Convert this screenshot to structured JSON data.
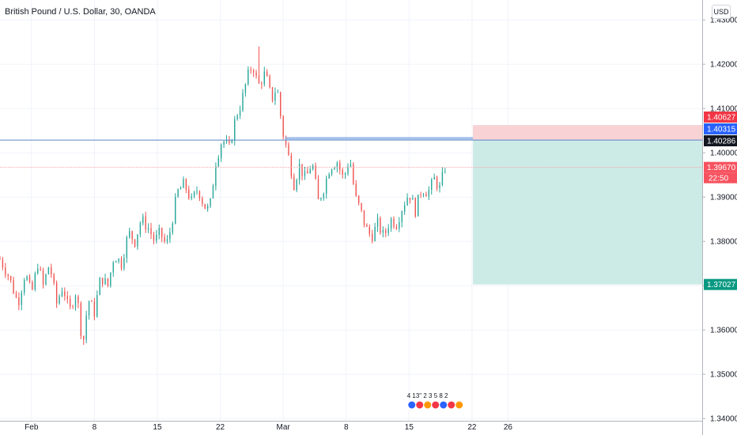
{
  "header": {
    "title": "British Pound / U.S. Dollar, 30, OANDA",
    "currency_button": "USD"
  },
  "chart_data": {
    "type": "candlestick",
    "title": "British Pound / U.S. Dollar, 30, OANDA",
    "y_ticks": [
      "1.43000",
      "1.42000",
      "1.41000",
      "1.40000",
      "1.39000",
      "1.38000",
      "1.37000",
      "1.36000",
      "1.35000",
      "1.34000"
    ],
    "ylim": [
      1.3395,
      1.4345
    ],
    "x_ticks": [
      {
        "label": "Feb",
        "day": 1
      },
      {
        "label": "8",
        "day": 8
      },
      {
        "label": "15",
        "day": 15
      },
      {
        "label": "22",
        "day": 22
      },
      {
        "label": "Mar",
        "day": 29
      },
      {
        "label": "8",
        "day": 36
      },
      {
        "label": "15",
        "day": 43
      },
      {
        "label": "22",
        "day": 50
      },
      {
        "label": "26",
        "day": 54
      }
    ],
    "xlim_days": [
      -2.5,
      75.6
    ],
    "price_path": [
      [
        -2.5,
        1.376
      ],
      [
        -1.5,
        1.372
      ],
      [
        -0.5,
        1.366
      ],
      [
        0.3,
        1.373
      ],
      [
        1.0,
        1.368
      ],
      [
        1.7,
        1.375
      ],
      [
        2.3,
        1.37
      ],
      [
        3.0,
        1.375
      ],
      [
        3.8,
        1.366
      ],
      [
        4.5,
        1.37
      ],
      [
        5.2,
        1.364
      ],
      [
        6.0,
        1.369
      ],
      [
        6.5,
        1.36
      ],
      [
        6.8,
        1.358
      ],
      [
        7.3,
        1.367
      ],
      [
        8.0,
        1.364
      ],
      [
        8.7,
        1.372
      ],
      [
        9.5,
        1.37
      ],
      [
        10.2,
        1.377
      ],
      [
        11.0,
        1.375
      ],
      [
        11.8,
        1.382
      ],
      [
        12.5,
        1.38
      ],
      [
        13.2,
        1.385
      ],
      [
        14.0,
        1.383
      ],
      [
        14.7,
        1.38
      ],
      [
        15.3,
        1.382
      ],
      [
        16.0,
        1.379
      ],
      [
        16.5,
        1.383
      ],
      [
        17.2,
        1.391
      ],
      [
        18.0,
        1.393
      ],
      [
        18.8,
        1.389
      ],
      [
        19.5,
        1.392
      ],
      [
        20.2,
        1.388
      ],
      [
        20.8,
        1.387
      ],
      [
        21.5,
        1.398
      ],
      [
        22.2,
        1.403
      ],
      [
        23.0,
        1.401
      ],
      [
        23.7,
        1.408
      ],
      [
        24.3,
        1.411
      ],
      [
        25.0,
        1.417
      ],
      [
        25.6,
        1.42
      ],
      [
        26.2,
        1.415
      ],
      [
        27.0,
        1.418
      ],
      [
        27.7,
        1.412
      ],
      [
        28.3,
        1.415
      ],
      [
        28.9,
        1.405
      ],
      [
        29.5,
        1.4
      ],
      [
        30.2,
        1.393
      ],
      [
        30.8,
        1.397
      ],
      [
        31.5,
        1.394
      ],
      [
        32.2,
        1.398
      ],
      [
        32.9,
        1.389
      ],
      [
        33.5,
        1.392
      ],
      [
        34.2,
        1.397
      ],
      [
        35.0,
        1.398
      ],
      [
        35.7,
        1.394
      ],
      [
        36.4,
        1.399
      ],
      [
        37.0,
        1.39
      ],
      [
        37.6,
        1.387
      ],
      [
        38.2,
        1.383
      ],
      [
        38.8,
        1.381
      ],
      [
        39.5,
        1.384
      ],
      [
        40.2,
        1.381
      ],
      [
        40.9,
        1.385
      ],
      [
        41.6,
        1.384
      ],
      [
        42.3,
        1.388
      ],
      [
        43.0,
        1.391
      ],
      [
        43.7,
        1.387
      ],
      [
        44.4,
        1.392
      ],
      [
        45.1,
        1.391
      ],
      [
        45.8,
        1.394
      ],
      [
        46.4,
        1.392
      ],
      [
        47.0,
        1.3967
      ]
    ],
    "high_point": [
      26.4,
      1.424
    ],
    "low_point": [
      7.0,
      1.357
    ],
    "horizontal_line": 1.40286,
    "current_price_line": 1.3967,
    "position": {
      "type": "short",
      "entry": 1.40286,
      "stop": 1.40627,
      "target": 1.37027,
      "start_day": 50.1,
      "end_day": 75.6
    },
    "price_labels": [
      {
        "value": 1.40627,
        "text": "1.40627",
        "color": "#f23645"
      },
      {
        "value": 1.40315,
        "text": "1.40315",
        "color": "#2962ff"
      },
      {
        "value": 1.40286,
        "text": "1.40286",
        "color": "#131722"
      },
      {
        "value": 1.3967,
        "text": "1.39670",
        "color": "#f7525f"
      },
      {
        "value": 1.37027,
        "text": "1.37027",
        "color": "#089981"
      }
    ],
    "countdown": "22:50",
    "events": "4 13\" 2 3 5 8 2",
    "colors": {
      "up": "#26a69a",
      "down": "#ef5350",
      "profit_zone": "#cdebe6",
      "loss_zone": "#f8d2d4",
      "hline": "#5b86c5"
    }
  }
}
